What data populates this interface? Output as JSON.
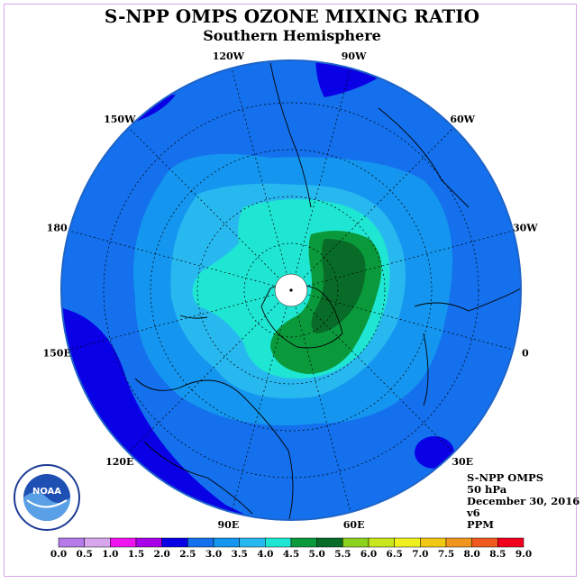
{
  "title": "S-NPP OMPS OZONE MIXING RATIO",
  "subtitle": "Southern Hemisphere",
  "info": {
    "instrument": "S-NPP OMPS",
    "pressure": "50 hPa",
    "date": "December 30, 2016",
    "version": "v6",
    "units": "PPM"
  },
  "logo_text": "NOAA",
  "longitudes": [
    {
      "label": "90W",
      "deg": 90
    },
    {
      "label": "60W",
      "deg": 60
    },
    {
      "label": "30W",
      "deg": 30
    },
    {
      "label": "0",
      "deg": 0
    },
    {
      "label": "30E",
      "deg": -30
    },
    {
      "label": "60E",
      "deg": -60
    },
    {
      "label": "90E",
      "deg": -90
    },
    {
      "label": "120E",
      "deg": -120
    },
    {
      "label": "150E",
      "deg": -150
    },
    {
      "label": "180",
      "deg": 180
    },
    {
      "label": "150W",
      "deg": 150
    },
    {
      "label": "120W",
      "deg": 120
    }
  ],
  "colorbar": {
    "labels": [
      "0.0",
      "0.5",
      "1.0",
      "1.5",
      "2.0",
      "2.5",
      "3.0",
      "3.5",
      "4.0",
      "4.5",
      "5.0",
      "5.5",
      "6.0",
      "6.5",
      "7.0",
      "7.5",
      "8.0",
      "8.5",
      "9.0"
    ],
    "colors": [
      "#b57be8",
      "#d7a6ec",
      "#ef14ef",
      "#a800e8",
      "#0a00e6",
      "#1470ec",
      "#1496f0",
      "#28b8f0",
      "#1ee6d2",
      "#0a9a3c",
      "#086c28",
      "#8cd21e",
      "#c8e61e",
      "#f0f01e",
      "#f0c814",
      "#f0961e",
      "#f05a1e",
      "#f0001e",
      "#8c5a3c"
    ]
  }
}
